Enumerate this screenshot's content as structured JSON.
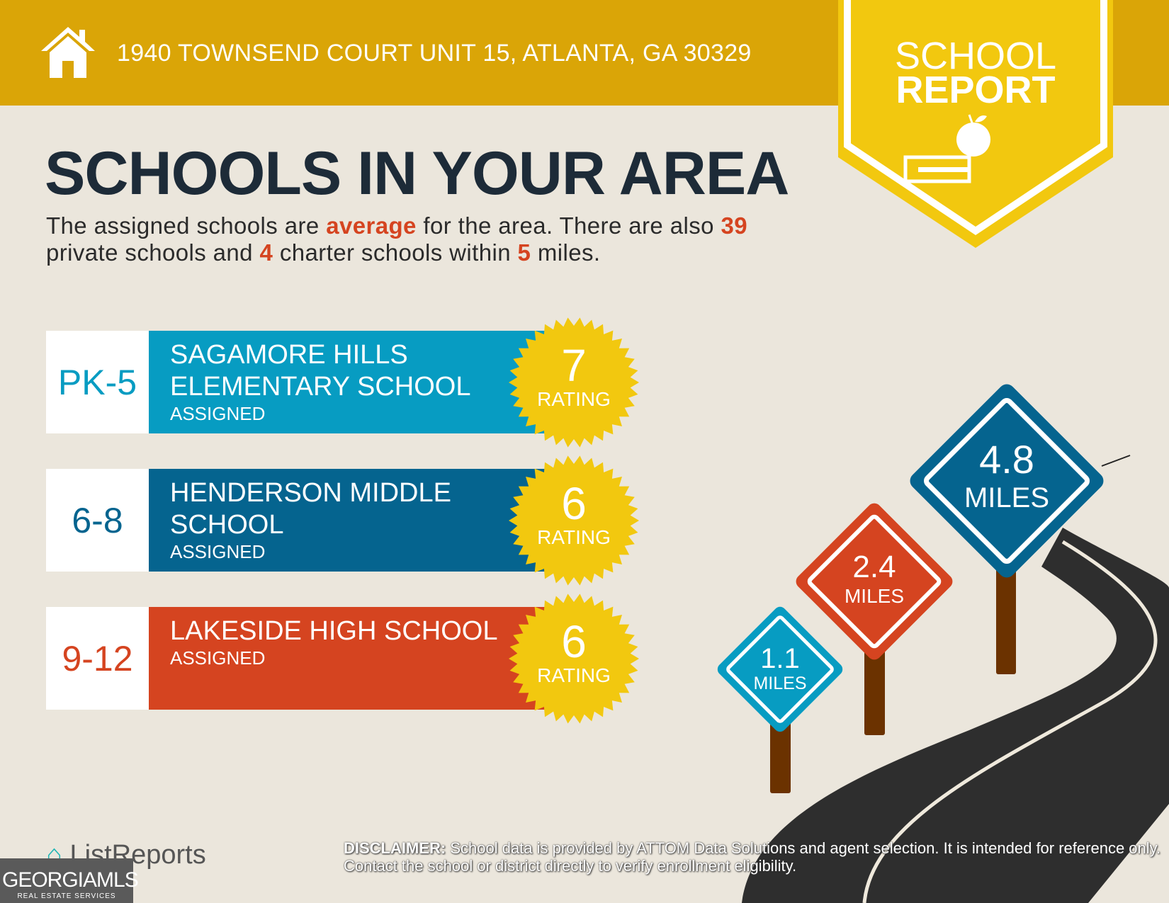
{
  "header": {
    "address": "1940 TOWNSEND COURT UNIT 15, ATLANTA, GA 30329",
    "badge_line1": "SCHOOL",
    "badge_line2": "REPORT",
    "colors": {
      "header": "#daa507",
      "badge": "#f2c80f"
    }
  },
  "main": {
    "title": "SCHOOLS IN YOUR AREA",
    "summary": {
      "p1": "The assigned schools are ",
      "quality": "average",
      "p2": " for the area. There are also ",
      "private_count": "39",
      "p3": " private schools and ",
      "charter_count": "4",
      "p4": " charter schools within ",
      "radius": "5",
      "p5": " miles."
    },
    "schools": [
      {
        "grades": "PK-5",
        "name": "SAGAMORE HILLS ELEMENTARY SCHOOL",
        "status": "ASSIGNED",
        "rating": "7",
        "rating_label": "RATING",
        "color": "#079cc2",
        "distance": "1.1",
        "distance_unit": "MILES"
      },
      {
        "grades": "6-8",
        "name": "HENDERSON MIDDLE SCHOOL",
        "status": "ASSIGNED",
        "rating": "6",
        "rating_label": "RATING",
        "color": "#05648f",
        "distance": "2.4",
        "distance_unit": "MILES"
      },
      {
        "grades": "9-12",
        "name": "LAKESIDE HIGH SCHOOL",
        "status": "ASSIGNED",
        "rating": "6",
        "rating_label": "RATING",
        "color": "#d54420",
        "distance": "4.8",
        "distance_unit": "MILES"
      }
    ]
  },
  "footer": {
    "disclaimer_label": "DISCLAIMER:",
    "disclaimer_text": " School data is provided by ATTOM Data Solutions and agent selection. It is intended for reference only. Contact the school or district directly to verify enrollment eligibility.",
    "brand": "ListReports",
    "mls_logo": "GEORGIAMLS",
    "mls_sub": "REAL ESTATE SERVICES"
  }
}
